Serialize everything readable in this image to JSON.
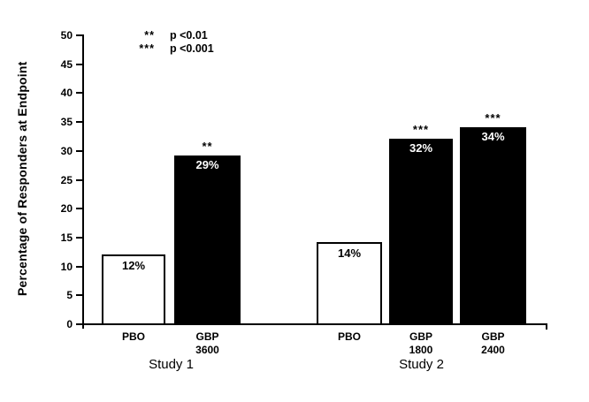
{
  "chart_data": {
    "type": "bar",
    "title": "",
    "xlabel": "",
    "ylabel": "Percentage of Responders at Endpoint",
    "ylim": [
      0,
      50
    ],
    "yticks": [
      0,
      5,
      10,
      15,
      20,
      25,
      30,
      35,
      40,
      45,
      50
    ],
    "grid": false,
    "legend_position": "top-left-inside",
    "legend_rows": [
      {
        "symbol": "**",
        "text": "p <0.01"
      },
      {
        "symbol": "***",
        "text": "p <0.001"
      }
    ],
    "groups": [
      {
        "label": "Study 1",
        "bars": [
          {
            "category_lines": [
              "PBO"
            ],
            "value": 12,
            "value_label": "12%",
            "fill": "#ffffff",
            "value_text_color": "#000000",
            "significance": ""
          },
          {
            "category_lines": [
              "GBP",
              "3600"
            ],
            "value": 29,
            "value_label": "29%",
            "fill": "#000000",
            "value_text_color": "#ffffff",
            "significance": "**"
          }
        ]
      },
      {
        "label": "Study 2",
        "bars": [
          {
            "category_lines": [
              "PBO"
            ],
            "value": 14,
            "value_label": "14%",
            "fill": "#ffffff",
            "value_text_color": "#000000",
            "significance": ""
          },
          {
            "category_lines": [
              "GBP",
              "1800"
            ],
            "value": 32,
            "value_label": "32%",
            "fill": "#000000",
            "value_text_color": "#ffffff",
            "significance": "***"
          },
          {
            "category_lines": [
              "GBP",
              "2400"
            ],
            "value": 34,
            "value_label": "34%",
            "fill": "#000000",
            "value_text_color": "#ffffff",
            "significance": "***"
          }
        ]
      }
    ],
    "colors": {
      "bar_fill_dark": "#000000",
      "bar_fill_light": "#ffffff",
      "axis": "#000000",
      "background": "#ffffff"
    }
  }
}
